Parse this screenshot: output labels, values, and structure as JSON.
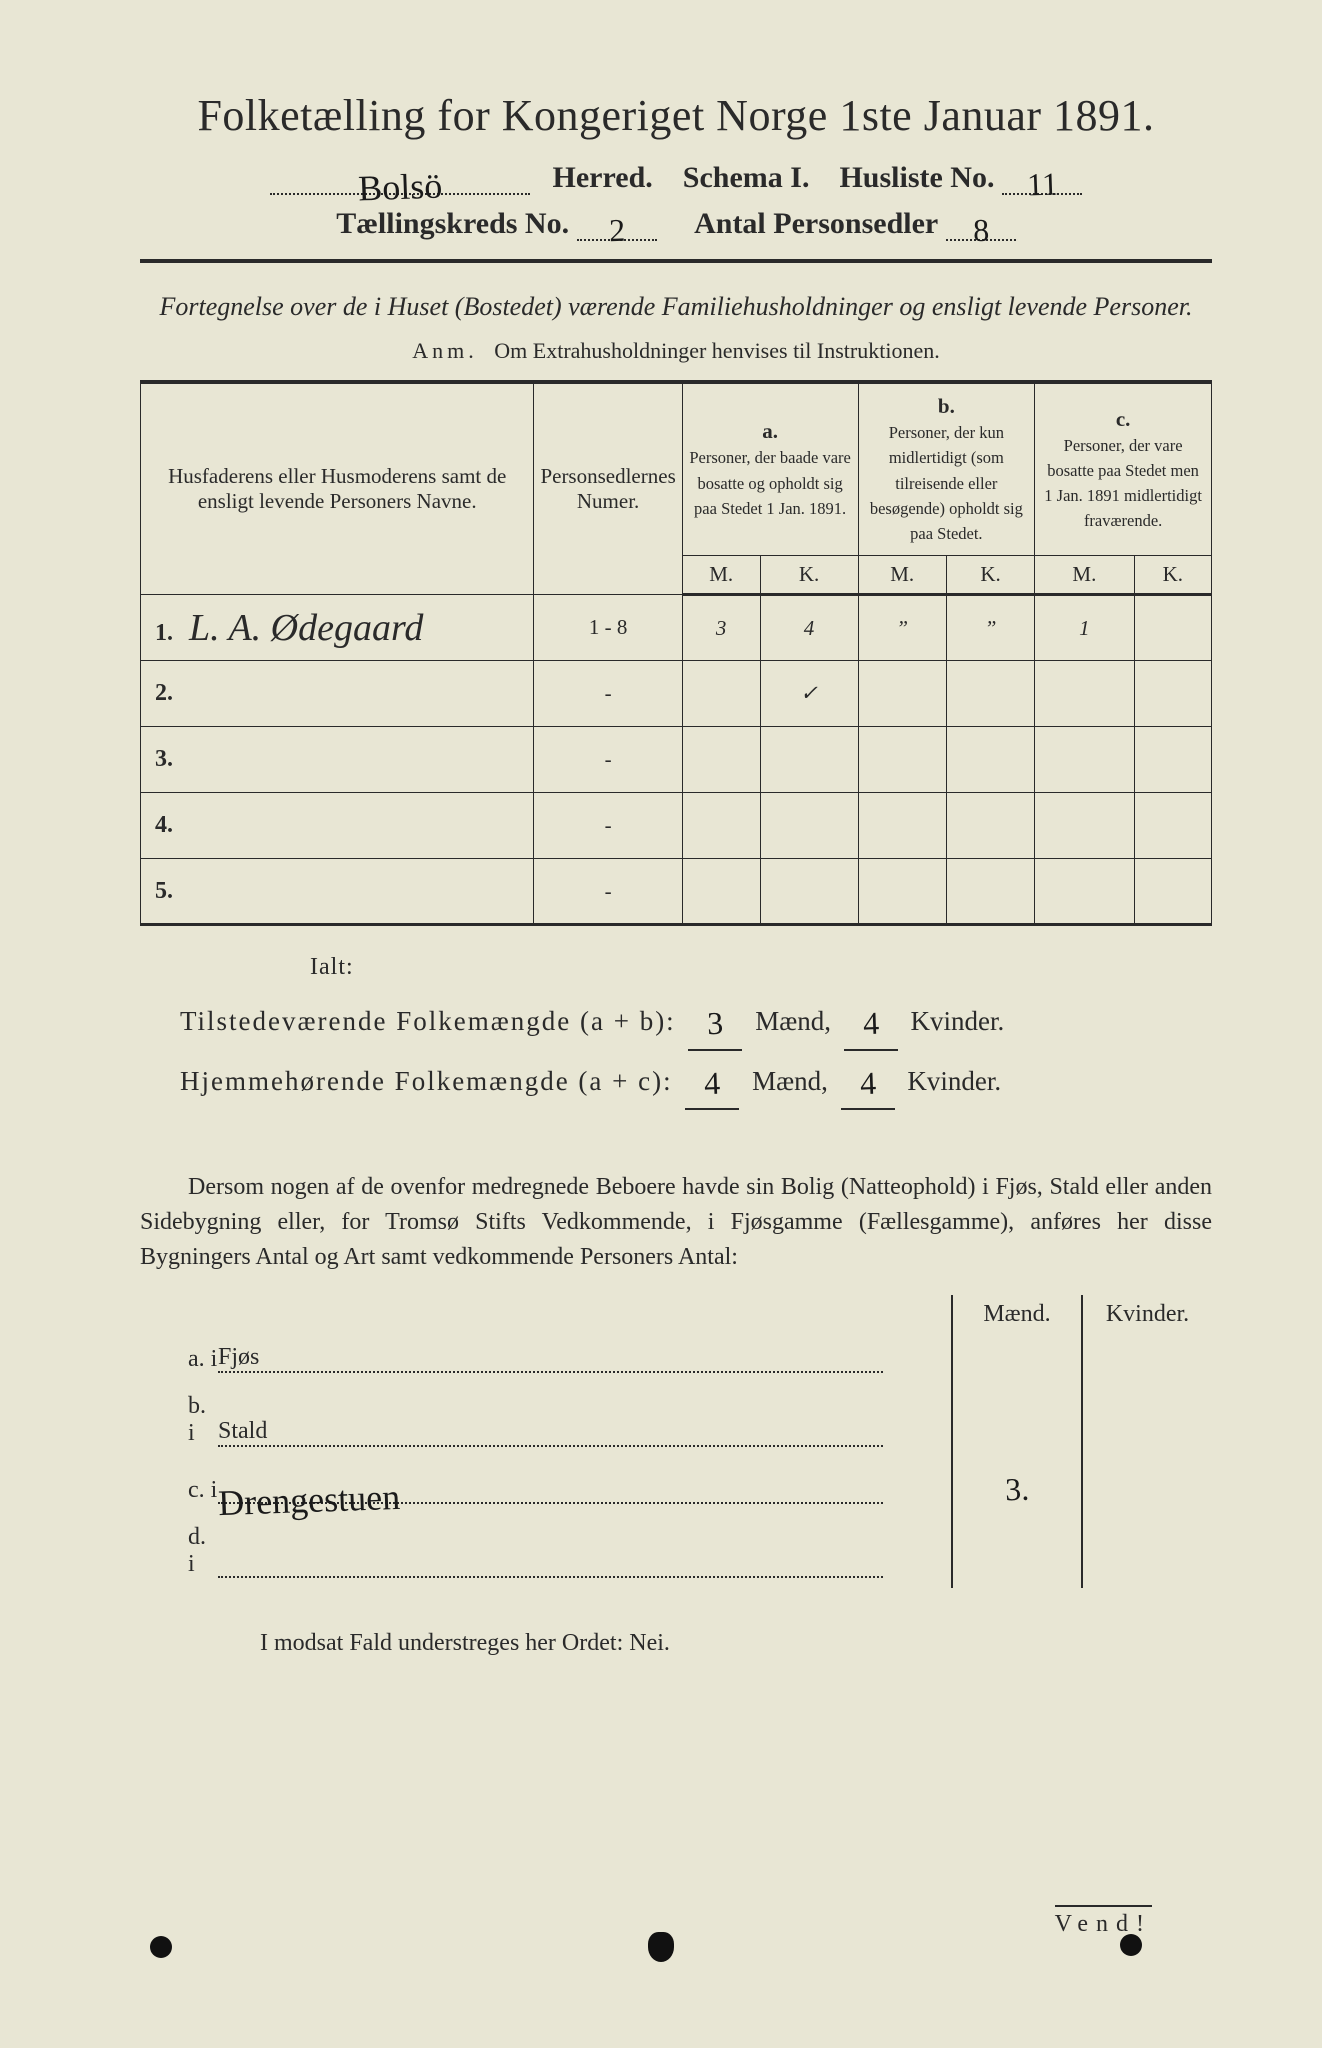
{
  "colors": {
    "paper": "#e8e6d4",
    "ink": "#2a2a2a",
    "background": "#4a4a4a"
  },
  "header": {
    "title": "Folketælling for Kongeriget Norge 1ste Januar 1891.",
    "herred_handwritten": "Bolsö",
    "herred_label": "Herred.",
    "schema_label": "Schema I.",
    "husliste_label": "Husliste No.",
    "husliste_no": "11",
    "kreds_label": "Tællingskreds No.",
    "kreds_no": "2",
    "antal_label": "Antal Personsedler",
    "antal_no": "8"
  },
  "subtitle": "Fortegnelse over de i Huset (Bostedet) værende Familiehusholdninger og ensligt levende Personer.",
  "anm": {
    "label": "Anm.",
    "text": "Om Extrahusholdninger henvises til Instruktionen."
  },
  "table": {
    "col_name": "Husfaderens eller Husmoderens samt de ensligt levende Personers Navne.",
    "col_num": "Personsedlernes Numer.",
    "col_a_tag": "a.",
    "col_a": "Personer, der baade vare bosatte og opholdt sig paa Stedet 1 Jan. 1891.",
    "col_b_tag": "b.",
    "col_b": "Personer, der kun midlertidigt (som tilreisende eller besøgende) opholdt sig paa Stedet.",
    "col_c_tag": "c.",
    "col_c": "Personer, der vare bosatte paa Stedet men 1 Jan. 1891 midlertidigt fraværende.",
    "M": "M.",
    "K": "K.",
    "rows": [
      {
        "n": "1.",
        "name": "L. A. Ødegaard",
        "num": "1 - 8",
        "aM": "3",
        "aK": "4",
        "bM": "”",
        "bK": "”",
        "cM": "1",
        "cK": ""
      },
      {
        "n": "2.",
        "name": "",
        "num": "-",
        "aM": "",
        "aK": "✓",
        "bM": "",
        "bK": "",
        "cM": "",
        "cK": ""
      },
      {
        "n": "3.",
        "name": "",
        "num": "-",
        "aM": "",
        "aK": "",
        "bM": "",
        "bK": "",
        "cM": "",
        "cK": ""
      },
      {
        "n": "4.",
        "name": "",
        "num": "-",
        "aM": "",
        "aK": "",
        "bM": "",
        "bK": "",
        "cM": "",
        "cK": ""
      },
      {
        "n": "5.",
        "name": "",
        "num": "-",
        "aM": "",
        "aK": "",
        "bM": "",
        "bK": "",
        "cM": "",
        "cK": ""
      }
    ]
  },
  "totals": {
    "ialt": "Ialt:",
    "line1_label": "Tilstedeværende Folkemængde (a + b):",
    "line2_label": "Hjemmehørende Folkemængde (a + c):",
    "maend": "Mænd,",
    "kvinder": "Kvinder.",
    "ab_m": "3",
    "ab_k": "4",
    "ac_m": "4",
    "ac_k": "4"
  },
  "para": "Dersom nogen af de ovenfor medregnede Beboere havde sin Bolig (Natteophold) i Fjøs, Stald eller anden Sidebygning eller, for Tromsø Stifts Vedkommende, i Fjøsgamme (Fællesgamme), anføres her disse Bygningers Antal og Art samt vedkommende Personers Antal:",
  "bldg": {
    "maend": "Mænd.",
    "kvinder": "Kvinder.",
    "rows": [
      {
        "lbl": "a.  i",
        "name": "Fjøs",
        "m": "",
        "k": ""
      },
      {
        "lbl": "b.  i",
        "name": "Stald",
        "m": "",
        "k": ""
      },
      {
        "lbl": "c.  i",
        "name": "Drengestuen",
        "m": "3.",
        "k": ""
      },
      {
        "lbl": "d.  i",
        "name": "",
        "m": "",
        "k": ""
      }
    ]
  },
  "nei": "I modsat Fald understreges her Ordet: Nei.",
  "vend": "Vend!"
}
